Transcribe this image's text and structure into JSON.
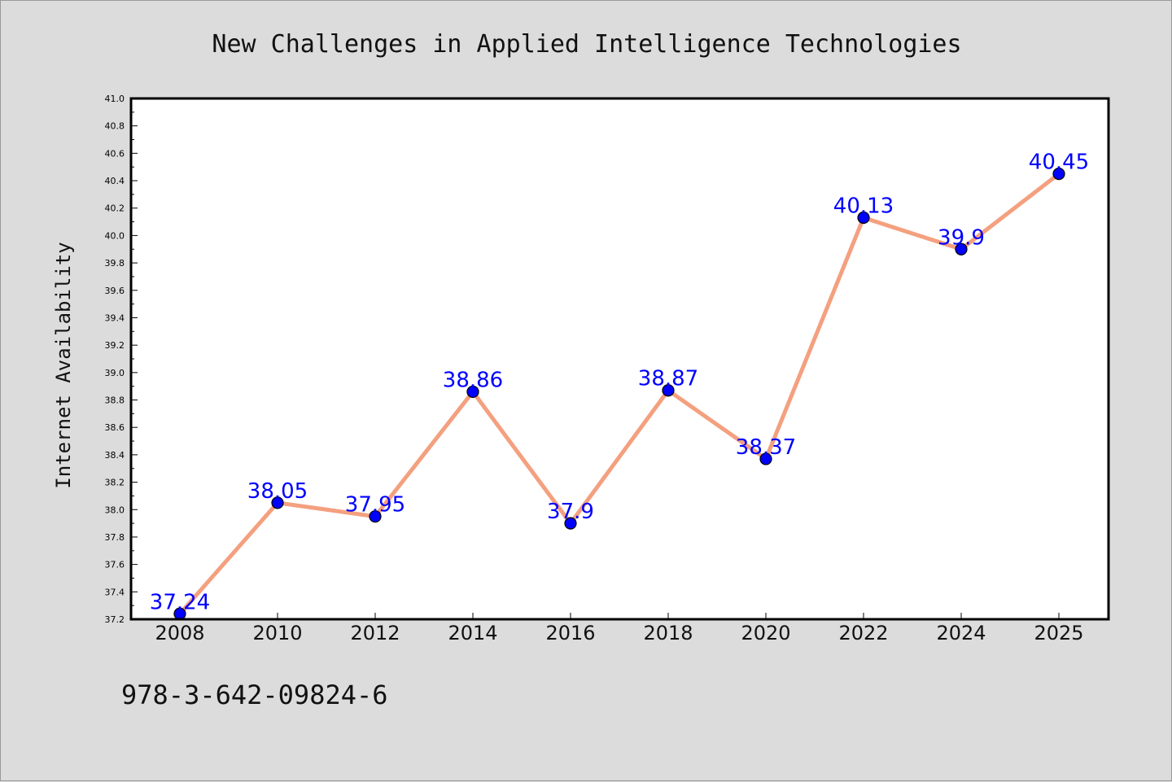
{
  "chart_data": {
    "type": "line",
    "title": "New Challenges in Applied Intelligence Technologies",
    "xlabel": "",
    "ylabel": "Internet Availability",
    "categories": [
      "2008",
      "2010",
      "2012",
      "2014",
      "2016",
      "2018",
      "2020",
      "2022",
      "2024",
      "2025"
    ],
    "values": [
      37.24,
      38.05,
      37.95,
      38.86,
      37.9,
      38.87,
      38.37,
      40.13,
      39.9,
      40.45
    ],
    "data_labels": [
      "37.24",
      "38.05",
      "37.95",
      "38.86",
      "37.9",
      "38.87",
      "38.37",
      "40.13",
      "39.9",
      "40.45"
    ],
    "ylim": [
      37.2,
      41.0
    ],
    "yticks": [
      "37.2",
      "37.4",
      "37.6",
      "37.8",
      "38.0",
      "38.2",
      "38.4",
      "38.6",
      "38.8",
      "39.0",
      "39.2",
      "39.4",
      "39.6",
      "39.8",
      "40.0",
      "40.2",
      "40.4",
      "40.6",
      "40.8",
      "41.0"
    ],
    "grid": false,
    "legend": "none",
    "colors": {
      "line": "#f4a07f",
      "marker": "#0000ff",
      "data_label": "#0000ff",
      "plot_background": "#ffffff",
      "figure_background": "#dcdcdc"
    }
  },
  "footer": {
    "isbn": "978-3-642-09824-6"
  }
}
